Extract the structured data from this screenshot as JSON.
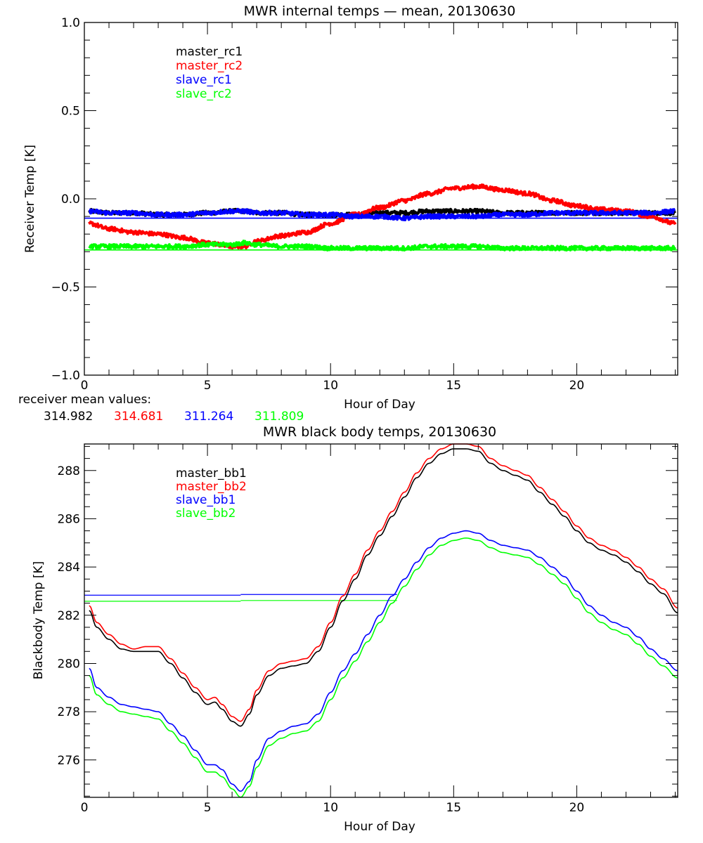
{
  "chart_data": [
    {
      "type": "line",
      "title": "MWR internal temps — mean, 20130630",
      "xlabel": "Hour of Day",
      "ylabel": "Receiver Temp [K]",
      "xlim": [
        0,
        24.1
      ],
      "ylim": [
        -1.0,
        1.0
      ],
      "xticks": [
        0,
        5,
        10,
        15,
        20
      ],
      "xtick_labels": [
        "0",
        "5",
        "10",
        "15",
        "20"
      ],
      "yticks": [
        -1.0,
        -0.5,
        0.0,
        0.5,
        1.0
      ],
      "ytick_labels": [
        "−1.0",
        "−0.5",
        "0.0",
        "0.5",
        "1.0"
      ],
      "x_minor_step": 1,
      "y_minor_step": 0.1,
      "grid": false,
      "legend_position": "top-left",
      "x": [
        0.2,
        1,
        2,
        3,
        4,
        5,
        6,
        6.5,
        7,
        8,
        9,
        10,
        11,
        12,
        13,
        14,
        15,
        16,
        17,
        18,
        19,
        20,
        21,
        22,
        23,
        24
      ],
      "series": [
        {
          "name": "master_rc1",
          "color": "#000000",
          "noisy": true,
          "values": [
            -0.07,
            -0.08,
            -0.08,
            -0.09,
            -0.09,
            -0.08,
            -0.07,
            -0.07,
            -0.08,
            -0.08,
            -0.09,
            -0.09,
            -0.09,
            -0.08,
            -0.08,
            -0.07,
            -0.07,
            -0.07,
            -0.08,
            -0.08,
            -0.08,
            -0.08,
            -0.08,
            -0.08,
            -0.08,
            -0.08
          ]
        },
        {
          "name": "master_rc2",
          "color": "#ff0000",
          "noisy": true,
          "values": [
            -0.14,
            -0.17,
            -0.19,
            -0.2,
            -0.22,
            -0.25,
            -0.27,
            -0.27,
            -0.24,
            -0.21,
            -0.19,
            -0.14,
            -0.09,
            -0.05,
            -0.01,
            0.03,
            0.06,
            0.07,
            0.05,
            0.03,
            -0.01,
            -0.04,
            -0.06,
            -0.07,
            -0.1,
            -0.14
          ]
        },
        {
          "name": "slave_rc1",
          "color": "#0000ff",
          "noisy": true,
          "values": [
            -0.07,
            -0.08,
            -0.08,
            -0.09,
            -0.09,
            -0.08,
            -0.07,
            -0.07,
            -0.08,
            -0.08,
            -0.09,
            -0.09,
            -0.1,
            -0.1,
            -0.11,
            -0.1,
            -0.1,
            -0.1,
            -0.09,
            -0.09,
            -0.08,
            -0.08,
            -0.08,
            -0.08,
            -0.08,
            -0.07
          ]
        },
        {
          "name": "slave_rc2",
          "color": "#00ff00",
          "noisy": true,
          "values": [
            -0.27,
            -0.27,
            -0.27,
            -0.27,
            -0.27,
            -0.26,
            -0.26,
            -0.25,
            -0.26,
            -0.27,
            -0.27,
            -0.28,
            -0.28,
            -0.28,
            -0.28,
            -0.27,
            -0.27,
            -0.27,
            -0.28,
            -0.28,
            -0.28,
            -0.28,
            -0.28,
            -0.28,
            -0.28,
            -0.28
          ]
        }
      ],
      "reference_lines": [
        {
          "name": "slave_rc1-mean",
          "color": "#0000ff",
          "x_range": [
            0,
            24.1
          ],
          "value": -0.11
        },
        {
          "name": "slave_rc2-mean",
          "color": "#00ff00",
          "x_range": [
            0,
            24.1
          ],
          "value": -0.29
        }
      ],
      "footer": {
        "label": "receiver mean values:",
        "values": [
          {
            "text": "314.982",
            "color": "#000000"
          },
          {
            "text": "314.681",
            "color": "#ff0000"
          },
          {
            "text": "311.264",
            "color": "#0000ff"
          },
          {
            "text": "311.809",
            "color": "#00ff00"
          }
        ]
      }
    },
    {
      "type": "line",
      "title": "MWR black body temps, 20130630",
      "xlabel": "Hour of Day",
      "ylabel": "Blackbody Temp [K]",
      "xlim": [
        0,
        24.1
      ],
      "ylim": [
        274.45,
        289.1
      ],
      "xticks": [
        0,
        5,
        10,
        15,
        20
      ],
      "xtick_labels": [
        "0",
        "5",
        "10",
        "15",
        "20"
      ],
      "yticks": [
        276,
        278,
        280,
        282,
        284,
        286,
        288
      ],
      "ytick_labels": [
        "276",
        "278",
        "280",
        "282",
        "284",
        "286",
        "288"
      ],
      "x_minor_step": 1,
      "y_minor_step": 0.5,
      "grid": false,
      "legend_position": "top-left",
      "x": [
        0.2,
        0.5,
        1,
        1.5,
        2,
        2.5,
        3,
        3.5,
        4,
        4.5,
        5,
        5.3,
        5.6,
        6,
        6.35,
        6.7,
        7,
        7.5,
        8,
        8.5,
        9,
        9.5,
        10,
        10.5,
        11,
        11.5,
        12,
        12.5,
        13,
        13.5,
        14,
        14.5,
        15,
        15.5,
        16,
        16.5,
        17,
        17.5,
        18,
        18.5,
        19,
        19.5,
        20,
        20.5,
        21,
        21.5,
        22,
        22.5,
        23,
        23.5,
        24.1
      ],
      "series": [
        {
          "name": "master_bb1",
          "color": "#000000",
          "values": [
            282.2,
            281.5,
            281.0,
            280.6,
            280.5,
            280.5,
            280.5,
            280.0,
            279.4,
            278.8,
            278.3,
            278.4,
            278.1,
            277.6,
            277.4,
            277.9,
            278.7,
            279.5,
            279.8,
            279.9,
            280.0,
            280.5,
            281.5,
            282.6,
            283.5,
            284.5,
            285.3,
            286.1,
            286.9,
            287.7,
            288.3,
            288.7,
            288.9,
            288.9,
            288.8,
            288.3,
            288.0,
            287.8,
            287.6,
            287.1,
            286.6,
            286.1,
            285.5,
            285.0,
            284.7,
            284.5,
            284.2,
            283.8,
            283.3,
            282.9,
            282.1
          ]
        },
        {
          "name": "master_bb2",
          "color": "#ff0000",
          "values": [
            282.4,
            281.7,
            281.2,
            280.8,
            280.6,
            280.7,
            280.7,
            280.2,
            279.6,
            279.0,
            278.5,
            278.6,
            278.3,
            277.8,
            277.6,
            278.1,
            278.9,
            279.7,
            280.0,
            280.1,
            280.2,
            280.7,
            281.7,
            282.8,
            283.7,
            284.7,
            285.5,
            286.3,
            287.1,
            287.9,
            288.5,
            288.9,
            289.1,
            289.1,
            289.0,
            288.5,
            288.2,
            288.0,
            287.8,
            287.3,
            286.8,
            286.3,
            285.7,
            285.2,
            284.9,
            284.7,
            284.4,
            284.0,
            283.5,
            283.1,
            282.3
          ]
        },
        {
          "name": "slave_bb1",
          "color": "#0000ff",
          "values": [
            279.8,
            279.0,
            278.6,
            278.3,
            278.2,
            278.1,
            278.0,
            277.5,
            277.0,
            276.4,
            275.8,
            275.8,
            275.6,
            275.0,
            274.7,
            275.1,
            276.0,
            276.9,
            277.2,
            277.4,
            277.5,
            277.9,
            278.8,
            279.7,
            280.4,
            281.2,
            282.0,
            282.8,
            283.5,
            284.2,
            284.8,
            285.2,
            285.4,
            285.5,
            285.4,
            285.1,
            284.9,
            284.8,
            284.7,
            284.4,
            284.0,
            283.6,
            283.0,
            282.4,
            282.0,
            281.7,
            281.5,
            281.1,
            280.6,
            280.2,
            279.7
          ]
        },
        {
          "name": "slave_bb2",
          "color": "#00ff00",
          "values": [
            279.5,
            278.7,
            278.3,
            278.0,
            277.9,
            277.8,
            277.7,
            277.2,
            276.7,
            276.1,
            275.5,
            275.5,
            275.3,
            274.8,
            274.45,
            274.9,
            275.7,
            276.6,
            276.9,
            277.1,
            277.2,
            277.6,
            278.5,
            279.4,
            280.1,
            280.9,
            281.7,
            282.5,
            283.2,
            283.9,
            284.5,
            284.9,
            285.1,
            285.2,
            285.1,
            284.8,
            284.6,
            284.5,
            284.4,
            284.1,
            283.7,
            283.3,
            282.7,
            282.1,
            281.7,
            281.4,
            281.2,
            280.8,
            280.3,
            279.9,
            279.4
          ]
        }
      ],
      "reference_lines": [
        {
          "name": "slave_bb1-mean",
          "color": "#0000ff",
          "segments": [
            [
              0,
              6.35,
              282.83
            ],
            [
              6.35,
              12.7,
              282.86
            ]
          ]
        },
        {
          "name": "slave_bb2-mean",
          "color": "#00ff00",
          "segments": [
            [
              0,
              6.35,
              282.58
            ],
            [
              6.35,
              12.7,
              282.61
            ]
          ]
        }
      ]
    }
  ]
}
